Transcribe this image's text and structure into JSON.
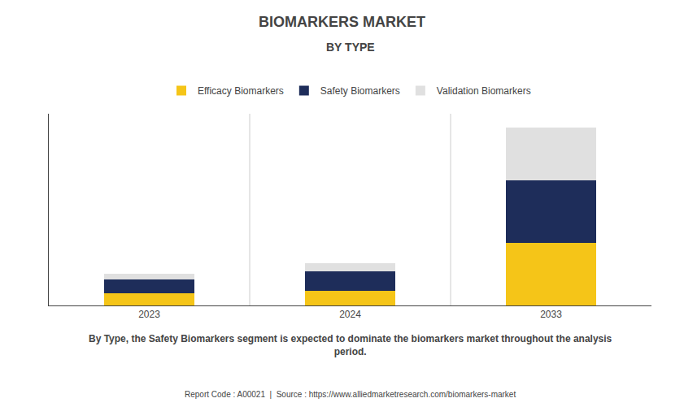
{
  "chart_data": {
    "type": "bar",
    "stacked": true,
    "title": "BIOMARKERS MARKET",
    "subtitle": "BY TYPE",
    "categories": [
      "2023",
      "2024",
      "2033"
    ],
    "series": [
      {
        "name": "Efficacy Biomarkers",
        "color": "#F5C518",
        "values": [
          18,
          22,
          95
        ]
      },
      {
        "name": "Safety Biomarkers",
        "color": "#1E2D5A",
        "values": [
          22,
          30,
          95
        ]
      },
      {
        "name": "Validation Biomarkers",
        "color": "#E0E0E0",
        "values": [
          8,
          12,
          80
        ]
      }
    ],
    "ylim": [
      0,
      291.6
    ],
    "yticks": [],
    "tick_labels": "x",
    "grid": false,
    "legend": "top",
    "annotations": [
      "By Type, the Safety Biomarkers segment is expected to dominate the biomarkers market throughout the analysis\nperiod.",
      "Report Code : A00021  |  Source : https://www.alliedmarketresearch.com/biomarkers-market"
    ]
  }
}
